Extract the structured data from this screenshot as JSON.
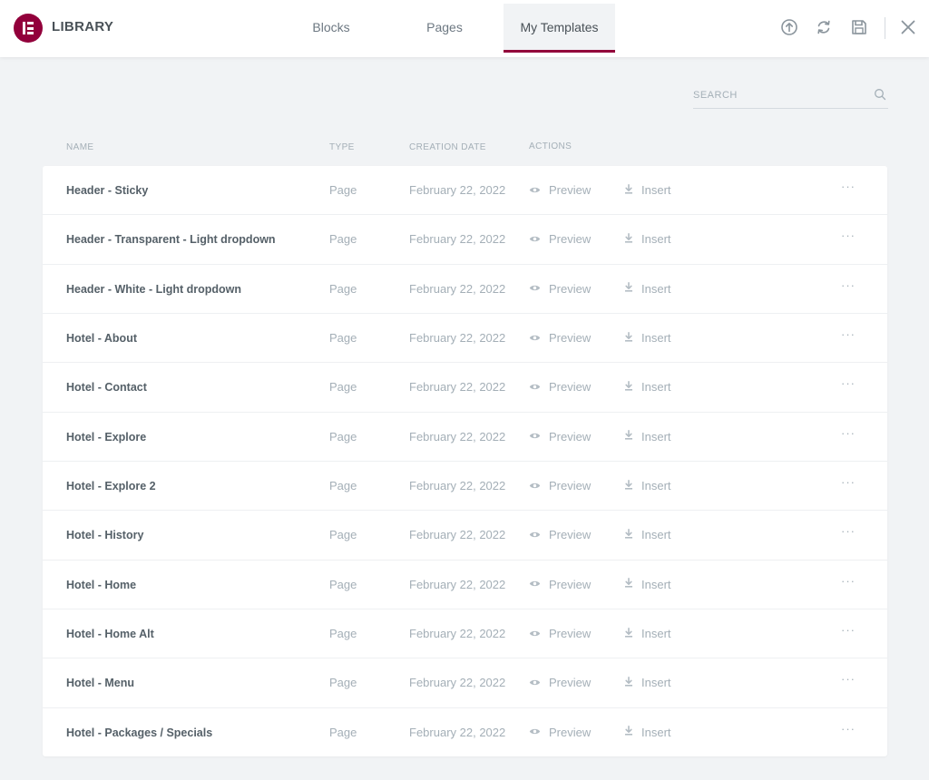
{
  "header": {
    "title": "LIBRARY",
    "tabs": [
      {
        "label": "Blocks",
        "active": false
      },
      {
        "label": "Pages",
        "active": false
      },
      {
        "label": "My Templates",
        "active": true
      }
    ],
    "tools": [
      "upload-icon",
      "sync-icon",
      "save-icon",
      "close-icon"
    ]
  },
  "search": {
    "placeholder": "SEARCH",
    "value": ""
  },
  "columns": {
    "name": "NAME",
    "type": "TYPE",
    "date": "CREATION DATE",
    "actions": "ACTIONS"
  },
  "actions": {
    "preview": "Preview",
    "insert": "Insert",
    "more": "···"
  },
  "rows": [
    {
      "name": "Header - Sticky",
      "type": "Page",
      "date": "February 22, 2022"
    },
    {
      "name": "Header - Transparent - Light dropdown",
      "type": "Page",
      "date": "February 22, 2022"
    },
    {
      "name": "Header - White - Light dropdown",
      "type": "Page",
      "date": "February 22, 2022"
    },
    {
      "name": "Hotel - About",
      "type": "Page",
      "date": "February 22, 2022"
    },
    {
      "name": "Hotel - Contact",
      "type": "Page",
      "date": "February 22, 2022"
    },
    {
      "name": "Hotel - Explore",
      "type": "Page",
      "date": "February 22, 2022"
    },
    {
      "name": "Hotel - Explore 2",
      "type": "Page",
      "date": "February 22, 2022"
    },
    {
      "name": "Hotel - History",
      "type": "Page",
      "date": "February 22, 2022"
    },
    {
      "name": "Hotel - Home",
      "type": "Page",
      "date": "February 22, 2022"
    },
    {
      "name": "Hotel - Home Alt",
      "type": "Page",
      "date": "February 22, 2022"
    },
    {
      "name": "Hotel - Menu",
      "type": "Page",
      "date": "February 22, 2022"
    },
    {
      "name": "Hotel - Packages / Specials",
      "type": "Page",
      "date": "February 22, 2022"
    }
  ],
  "colors": {
    "brand": "#92003b",
    "background": "#f1f3f5",
    "text_dark": "#495157",
    "text_muted": "#a4afb7"
  }
}
